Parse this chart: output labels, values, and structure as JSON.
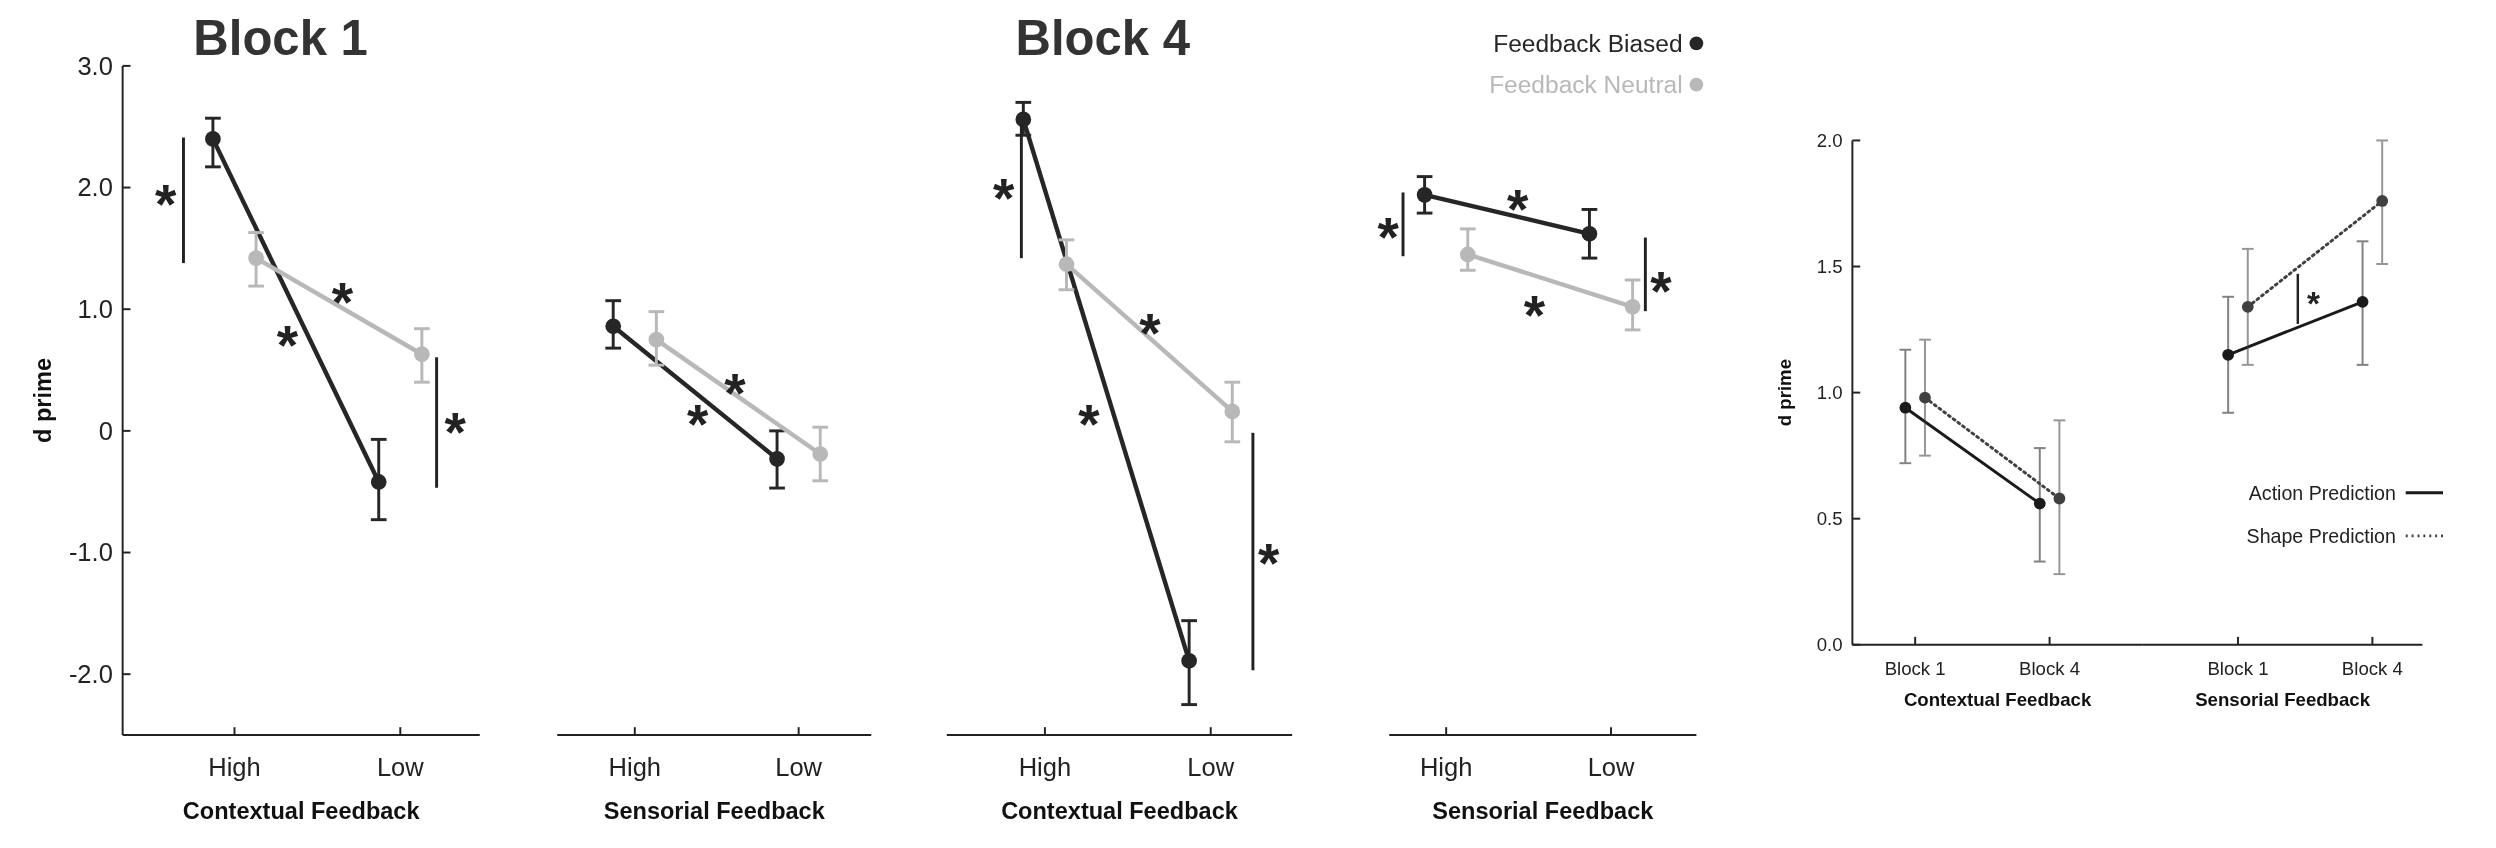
{
  "chart_data": [
    {
      "type": "line",
      "title": "Block 1",
      "xlabel": "Contextual Feedback",
      "ylabel": "d prime",
      "categories": [
        "High",
        "Low"
      ],
      "ylim": [
        -2.5,
        3.0
      ],
      "yticks": [
        {
          "value": 3,
          "label": "3.0"
        },
        {
          "value": 2,
          "label": "2.0"
        },
        {
          "value": 1,
          "label": "1.0"
        },
        0,
        {
          "value": -1,
          "label": "-1.0"
        },
        {
          "value": -2,
          "label": "-2.0"
        }
      ],
      "marker": "circle",
      "grid": false,
      "legend": false,
      "series": [
        {
          "color": "#262626",
          "values": [
            2.4,
            -0.42
          ],
          "errors": [
            [
              2.17,
              2.57
            ],
            [
              -0.73,
              -0.07
            ]
          ]
        },
        {
          "color": "#b8b8b8",
          "values": [
            1.42,
            0.63
          ],
          "errors": [
            [
              1.19,
              1.63
            ],
            [
              0.4,
              0.84
            ]
          ]
        }
      ],
      "annotations": [
        "*",
        "*",
        "*",
        "*"
      ]
    },
    {
      "type": "line",
      "xlabel": "Sensorial Feedback",
      "categories": [
        "High",
        "Low"
      ],
      "ylim": [
        -2.5,
        3.0
      ],
      "tick_labels": "x",
      "marker": "circle",
      "grid": false,
      "legend": false,
      "series": [
        {
          "color": "#262626",
          "values": [
            0.86,
            -0.23
          ],
          "errors": [
            [
              0.68,
              1.07
            ],
            [
              -0.47,
              0.0
            ]
          ]
        },
        {
          "color": "#b8b8b8",
          "values": [
            0.75,
            -0.19
          ],
          "errors": [
            [
              0.54,
              0.98
            ],
            [
              -0.41,
              0.03
            ]
          ]
        }
      ],
      "annotations": [
        "*",
        "*"
      ]
    },
    {
      "type": "line",
      "title": "Block 4",
      "xlabel": "Contextual Feedback",
      "categories": [
        "High",
        "Low"
      ],
      "ylim": [
        -2.5,
        3.0
      ],
      "tick_labels": "x",
      "marker": "circle",
      "grid": false,
      "legend": false,
      "series": [
        {
          "color": "#262626",
          "values": [
            2.56,
            -1.89
          ],
          "errors": [
            [
              2.43,
              2.7
            ],
            [
              -2.25,
              -1.56
            ]
          ]
        },
        {
          "color": "#b8b8b8",
          "values": [
            1.37,
            0.16
          ],
          "errors": [
            [
              1.16,
              1.57
            ],
            [
              -0.09,
              0.4
            ]
          ]
        }
      ],
      "annotations": [
        "*",
        "*",
        "*",
        "*"
      ]
    },
    {
      "type": "line",
      "xlabel": "Sensorial Feedback",
      "categories": [
        "High",
        "Low"
      ],
      "ylim": [
        -2.5,
        3.0
      ],
      "tick_labels": "x",
      "marker": "circle",
      "grid": false,
      "legend": "top right",
      "series": [
        {
          "name": "Feedback Biased",
          "color": "#262626",
          "values": [
            1.94,
            1.62
          ],
          "errors": [
            [
              1.79,
              2.09
            ],
            [
              1.42,
              1.82
            ]
          ]
        },
        {
          "name": "Feedback Neutral",
          "color": "#b8b8b8",
          "values": [
            1.45,
            1.02
          ],
          "errors": [
            [
              1.32,
              1.66
            ],
            [
              0.83,
              1.24
            ]
          ]
        }
      ],
      "annotations": [
        "*",
        "*",
        "*",
        "*"
      ]
    },
    {
      "type": "line",
      "xlabel": "Contextual Feedback",
      "ylabel": "d prime",
      "categories": [
        "Block 1",
        "Block 4"
      ],
      "ylim": [
        0,
        2.0
      ],
      "yticks": [
        {
          "value": 0,
          "label": "0.0"
        },
        0.5,
        {
          "value": 1,
          "label": "1.0"
        },
        1.5,
        {
          "value": 2,
          "label": "2.0"
        }
      ],
      "marker": "circle",
      "grid": false,
      "legend": false,
      "series": [
        {
          "color": "#1a1a1a",
          "line_style": "solid",
          "values": [
            0.94,
            0.56
          ],
          "errors": [
            [
              0.72,
              1.17
            ],
            [
              0.33,
              0.78
            ]
          ]
        },
        {
          "color": "#404040",
          "line_style": "dotted",
          "values": [
            0.98,
            0.58
          ],
          "errors": [
            [
              0.75,
              1.21
            ],
            [
              0.28,
              0.89
            ]
          ]
        }
      ]
    },
    {
      "type": "line",
      "xlabel": "Sensorial Feedback",
      "categories": [
        "Block 1",
        "Block 4"
      ],
      "ylim": [
        0,
        2.0
      ],
      "tick_labels": "x",
      "marker": "circle",
      "grid": false,
      "legend": "right",
      "series": [
        {
          "name": "Action Prediction",
          "color": "#1a1a1a",
          "line_style": "solid",
          "values": [
            1.15,
            1.36
          ],
          "errors": [
            [
              0.92,
              1.38
            ],
            [
              1.11,
              1.6
            ]
          ]
        },
        {
          "name": "Shape Prediction",
          "color": "#404040",
          "line_style": "dotted",
          "values": [
            1.34,
            1.76
          ],
          "errors": [
            [
              1.11,
              1.57
            ],
            [
              1.51,
              2.0
            ]
          ]
        }
      ],
      "annotations": [
        "*"
      ]
    }
  ]
}
